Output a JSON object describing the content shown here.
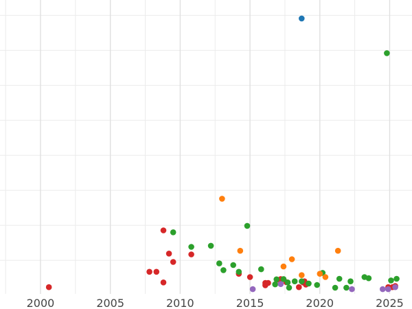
{
  "chart_data": {
    "type": "scatter",
    "title": "",
    "xlabel": "",
    "ylabel": "",
    "xlim": [
      1997.1,
      2026.6
    ],
    "ylim": [
      0,
      10.5
    ],
    "x_ticks": [
      2000,
      2005,
      2010,
      2015,
      2020,
      2025
    ],
    "x_tick_labels": [
      "2000",
      "2005",
      "2010",
      "2015",
      "2020",
      "2025"
    ],
    "x_minor_gridlines": [
      1997.5,
      2002.5,
      2007.5,
      2012.5,
      2017.5,
      2022.5
    ],
    "y_gridlines": [
      1.2,
      2.45,
      3.7,
      4.95,
      6.2,
      7.45,
      8.7,
      9.95
    ],
    "grid": true,
    "legend": "none",
    "series": [
      {
        "color": "#d62728",
        "points": [
          [
            2000.6,
            0.24
          ],
          [
            2007.8,
            0.79
          ],
          [
            2008.3,
            0.79
          ],
          [
            2008.8,
            0.41
          ],
          [
            2008.8,
            2.27
          ],
          [
            2009.2,
            1.44
          ],
          [
            2009.5,
            1.14
          ],
          [
            2010.8,
            1.41
          ],
          [
            2014.2,
            0.72
          ],
          [
            2015.0,
            0.6
          ],
          [
            2016.1,
            0.31
          ],
          [
            2016.1,
            0.39
          ],
          [
            2016.3,
            0.39
          ],
          [
            2017.1,
            0.49
          ],
          [
            2017.2,
            0.53
          ],
          [
            2017.6,
            0.42
          ],
          [
            2018.5,
            0.24
          ],
          [
            2018.8,
            0.41
          ],
          [
            2018.9,
            0.45
          ],
          [
            2019.0,
            0.33
          ],
          [
            2024.9,
            0.24
          ],
          [
            2025.2,
            0.24
          ],
          [
            2025.4,
            0.28
          ]
        ]
      },
      {
        "color": "#2ca02c",
        "points": [
          [
            2009.5,
            2.2
          ],
          [
            2010.8,
            1.68
          ],
          [
            2012.2,
            1.72
          ],
          [
            2012.8,
            1.09
          ],
          [
            2013.1,
            0.85
          ],
          [
            2013.8,
            1.03
          ],
          [
            2014.2,
            0.79
          ],
          [
            2014.8,
            2.43
          ],
          [
            2015.8,
            0.88
          ],
          [
            2016.8,
            0.34
          ],
          [
            2016.9,
            0.52
          ],
          [
            2017.4,
            0.53
          ],
          [
            2017.7,
            0.41
          ],
          [
            2017.8,
            0.22
          ],
          [
            2018.2,
            0.45
          ],
          [
            2018.7,
            0.45
          ],
          [
            2019.2,
            0.37
          ],
          [
            2019.8,
            0.32
          ],
          [
            2020.2,
            0.75
          ],
          [
            2021.1,
            0.22
          ],
          [
            2021.4,
            0.54
          ],
          [
            2021.9,
            0.22
          ],
          [
            2022.2,
            0.45
          ],
          [
            2023.2,
            0.6
          ],
          [
            2023.5,
            0.56
          ],
          [
            2024.8,
            8.6
          ],
          [
            2025.1,
            0.48
          ],
          [
            2025.5,
            0.54
          ]
        ]
      },
      {
        "color": "#ff7f0e",
        "points": [
          [
            2013.0,
            3.4
          ],
          [
            2014.3,
            1.54
          ],
          [
            2017.4,
            0.98
          ],
          [
            2018.0,
            1.24
          ],
          [
            2018.7,
            0.67
          ],
          [
            2020.0,
            0.72
          ],
          [
            2020.4,
            0.6
          ],
          [
            2021.3,
            1.54
          ]
        ]
      },
      {
        "color": "#1f77b4",
        "points": [
          [
            2018.7,
            9.84
          ]
        ]
      },
      {
        "color": "#9467bd",
        "points": [
          [
            2015.2,
            0.17
          ],
          [
            2017.2,
            0.35
          ],
          [
            2022.3,
            0.17
          ],
          [
            2024.5,
            0.17
          ],
          [
            2024.9,
            0.17
          ],
          [
            2025.4,
            0.24
          ]
        ]
      }
    ]
  }
}
